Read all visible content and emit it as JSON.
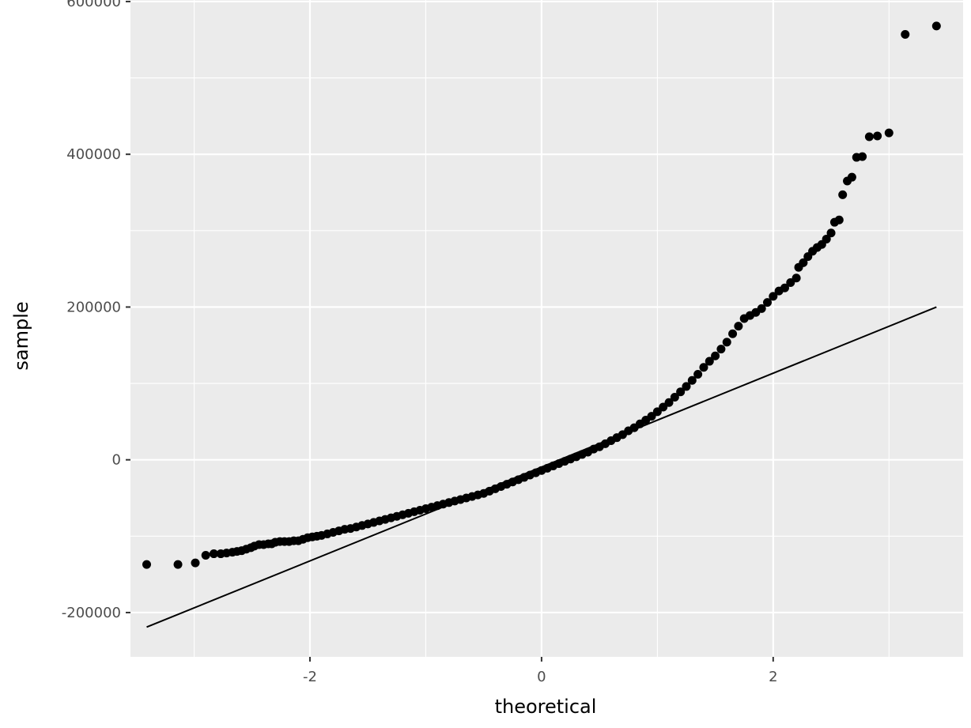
{
  "chart_data": {
    "type": "scatter",
    "title": "",
    "xlabel": "theoretical",
    "ylabel": "sample",
    "xlim": [
      -3.55,
      3.64
    ],
    "ylim": [
      -258000,
      602000
    ],
    "x_ticks": [
      {
        "value": -2,
        "label": "-2"
      },
      {
        "value": 0,
        "label": "0"
      },
      {
        "value": 2,
        "label": "2"
      }
    ],
    "x_minor": [
      -3,
      -1,
      1,
      3
    ],
    "y_ticks": [
      {
        "value": -200000,
        "label": "-200000"
      },
      {
        "value": 0,
        "label": "0"
      },
      {
        "value": 200000,
        "label": "200000"
      },
      {
        "value": 400000,
        "label": "400000"
      },
      {
        "value": 600000,
        "label": "600000"
      }
    ],
    "y_minor": [
      -100000,
      100000,
      300000,
      500000
    ],
    "grid": true,
    "colors": {
      "panel": "#ebebeb",
      "grid": "#ffffff",
      "points": "#000000",
      "line": "#000000",
      "text": "#4d4d4d"
    },
    "reference_line": {
      "x": [
        -3.41,
        3.41
      ],
      "y": [
        -219000,
        200000
      ]
    },
    "series": [
      {
        "points": [
          [
            -3.41,
            -137000
          ],
          [
            -3.14,
            -137000
          ],
          [
            -2.99,
            -135000
          ],
          [
            -2.9,
            -125000
          ],
          [
            -2.83,
            -123000
          ],
          [
            -2.77,
            -123000
          ],
          [
            -2.72,
            -122000
          ],
          [
            -2.67,
            -121000
          ],
          [
            -2.63,
            -120000
          ],
          [
            -2.59,
            -119000
          ],
          [
            -2.55,
            -117000
          ],
          [
            -2.51,
            -115000
          ],
          [
            -2.48,
            -113000
          ],
          [
            -2.44,
            -111000
          ],
          [
            -2.4,
            -111000
          ],
          [
            -2.36,
            -110000
          ],
          [
            -2.33,
            -110000
          ],
          [
            -2.3,
            -108000
          ],
          [
            -2.26,
            -107000
          ],
          [
            -2.22,
            -107000
          ],
          [
            -2.18,
            -107000
          ],
          [
            -2.14,
            -106000
          ],
          [
            -2.1,
            -106000
          ],
          [
            -2.06,
            -104000
          ],
          [
            -2.02,
            -102000
          ],
          [
            -1.98,
            -101000
          ],
          [
            -1.94,
            -100000
          ],
          [
            -1.9,
            -99000
          ],
          [
            -1.85,
            -97000
          ],
          [
            -1.8,
            -95000
          ],
          [
            -1.75,
            -93000
          ],
          [
            -1.7,
            -91000
          ],
          [
            -1.65,
            -90000
          ],
          [
            -1.6,
            -88000
          ],
          [
            -1.55,
            -86000
          ],
          [
            -1.5,
            -84000
          ],
          [
            -1.45,
            -82000
          ],
          [
            -1.4,
            -80000
          ],
          [
            -1.35,
            -78000
          ],
          [
            -1.3,
            -76000
          ],
          [
            -1.25,
            -74000
          ],
          [
            -1.2,
            -72000
          ],
          [
            -1.15,
            -70000
          ],
          [
            -1.1,
            -68000
          ],
          [
            -1.05,
            -66000
          ],
          [
            -1.0,
            -64000
          ],
          [
            -0.95,
            -62000
          ],
          [
            -0.9,
            -60000
          ],
          [
            -0.85,
            -58000
          ],
          [
            -0.8,
            -56000
          ],
          [
            -0.75,
            -54000
          ],
          [
            -0.7,
            -52000
          ],
          [
            -0.65,
            -50000
          ],
          [
            -0.6,
            -48000
          ],
          [
            -0.55,
            -46000
          ],
          [
            -0.5,
            -44000
          ],
          [
            -0.45,
            -41000
          ],
          [
            -0.4,
            -38000
          ],
          [
            -0.35,
            -35000
          ],
          [
            -0.3,
            -32000
          ],
          [
            -0.25,
            -29000
          ],
          [
            -0.2,
            -26000
          ],
          [
            -0.15,
            -23000
          ],
          [
            -0.1,
            -20000
          ],
          [
            -0.05,
            -17000
          ],
          [
            0.0,
            -14000
          ],
          [
            0.05,
            -11000
          ],
          [
            0.1,
            -8000
          ],
          [
            0.15,
            -5000
          ],
          [
            0.2,
            -2000
          ],
          [
            0.25,
            1000
          ],
          [
            0.3,
            4000
          ],
          [
            0.35,
            7000
          ],
          [
            0.4,
            10000
          ],
          [
            0.45,
            14000
          ],
          [
            0.5,
            17000
          ],
          [
            0.55,
            21000
          ],
          [
            0.6,
            25000
          ],
          [
            0.65,
            29000
          ],
          [
            0.7,
            33000
          ],
          [
            0.75,
            38000
          ],
          [
            0.8,
            42000
          ],
          [
            0.85,
            47000
          ],
          [
            0.9,
            52000
          ],
          [
            0.95,
            57000
          ],
          [
            1.0,
            63000
          ],
          [
            1.05,
            69000
          ],
          [
            1.1,
            75000
          ],
          [
            1.15,
            82000
          ],
          [
            1.2,
            89000
          ],
          [
            1.25,
            96000
          ],
          [
            1.3,
            104000
          ],
          [
            1.35,
            112000
          ],
          [
            1.4,
            121000
          ],
          [
            1.45,
            129000
          ],
          [
            1.5,
            136000
          ],
          [
            1.55,
            145000
          ],
          [
            1.6,
            154000
          ],
          [
            1.65,
            165000
          ],
          [
            1.7,
            175000
          ],
          [
            1.75,
            185000
          ],
          [
            1.8,
            189000
          ],
          [
            1.85,
            193000
          ],
          [
            1.9,
            198000
          ],
          [
            1.95,
            206000
          ],
          [
            2.0,
            214000
          ],
          [
            2.05,
            221000
          ],
          [
            2.1,
            225000
          ],
          [
            2.15,
            232000
          ],
          [
            2.2,
            238000
          ],
          [
            2.22,
            252000
          ],
          [
            2.26,
            258000
          ],
          [
            2.3,
            266000
          ],
          [
            2.34,
            273000
          ],
          [
            2.38,
            278000
          ],
          [
            2.42,
            282000
          ],
          [
            2.46,
            289000
          ],
          [
            2.5,
            297000
          ],
          [
            2.53,
            311000
          ],
          [
            2.57,
            314000
          ],
          [
            2.6,
            347000
          ],
          [
            2.64,
            365000
          ],
          [
            2.68,
            370000
          ],
          [
            2.72,
            396000
          ],
          [
            2.77,
            397000
          ],
          [
            2.83,
            423000
          ],
          [
            2.9,
            424000
          ],
          [
            3.0,
            428000
          ],
          [
            3.14,
            557000
          ],
          [
            3.41,
            568000
          ]
        ]
      }
    ]
  }
}
